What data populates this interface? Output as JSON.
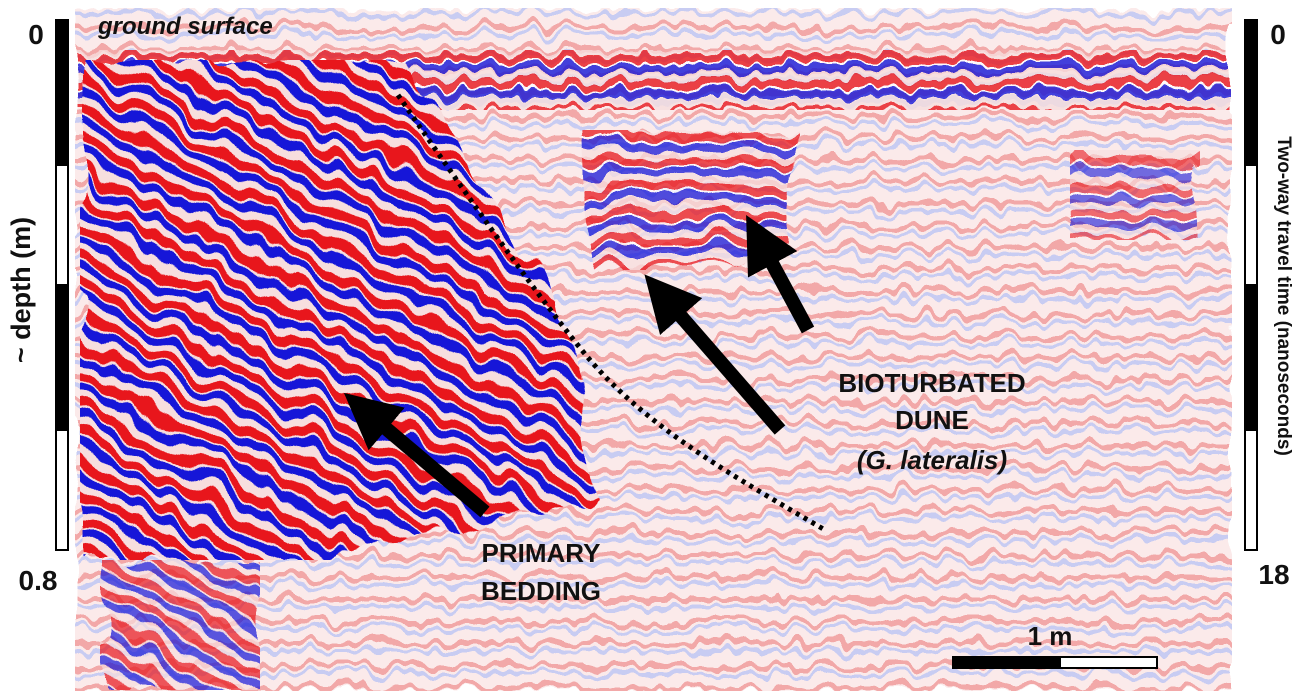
{
  "header": {
    "title": "ground surface"
  },
  "left_axis": {
    "top": "0",
    "bottom": "0.8",
    "label": "~ depth (m)"
  },
  "right_axis": {
    "top": "0",
    "bottom": "18",
    "label": "Two-way travel time (nanoseconds)"
  },
  "annotations": [
    {
      "lines": [
        "PRIMARY",
        "BEDDING"
      ]
    },
    {
      "lines": [
        "BIOTURBATED",
        "DUNE",
        "(G. lateralis)"
      ]
    }
  ],
  "scale_bar": {
    "label": "1 m"
  }
}
